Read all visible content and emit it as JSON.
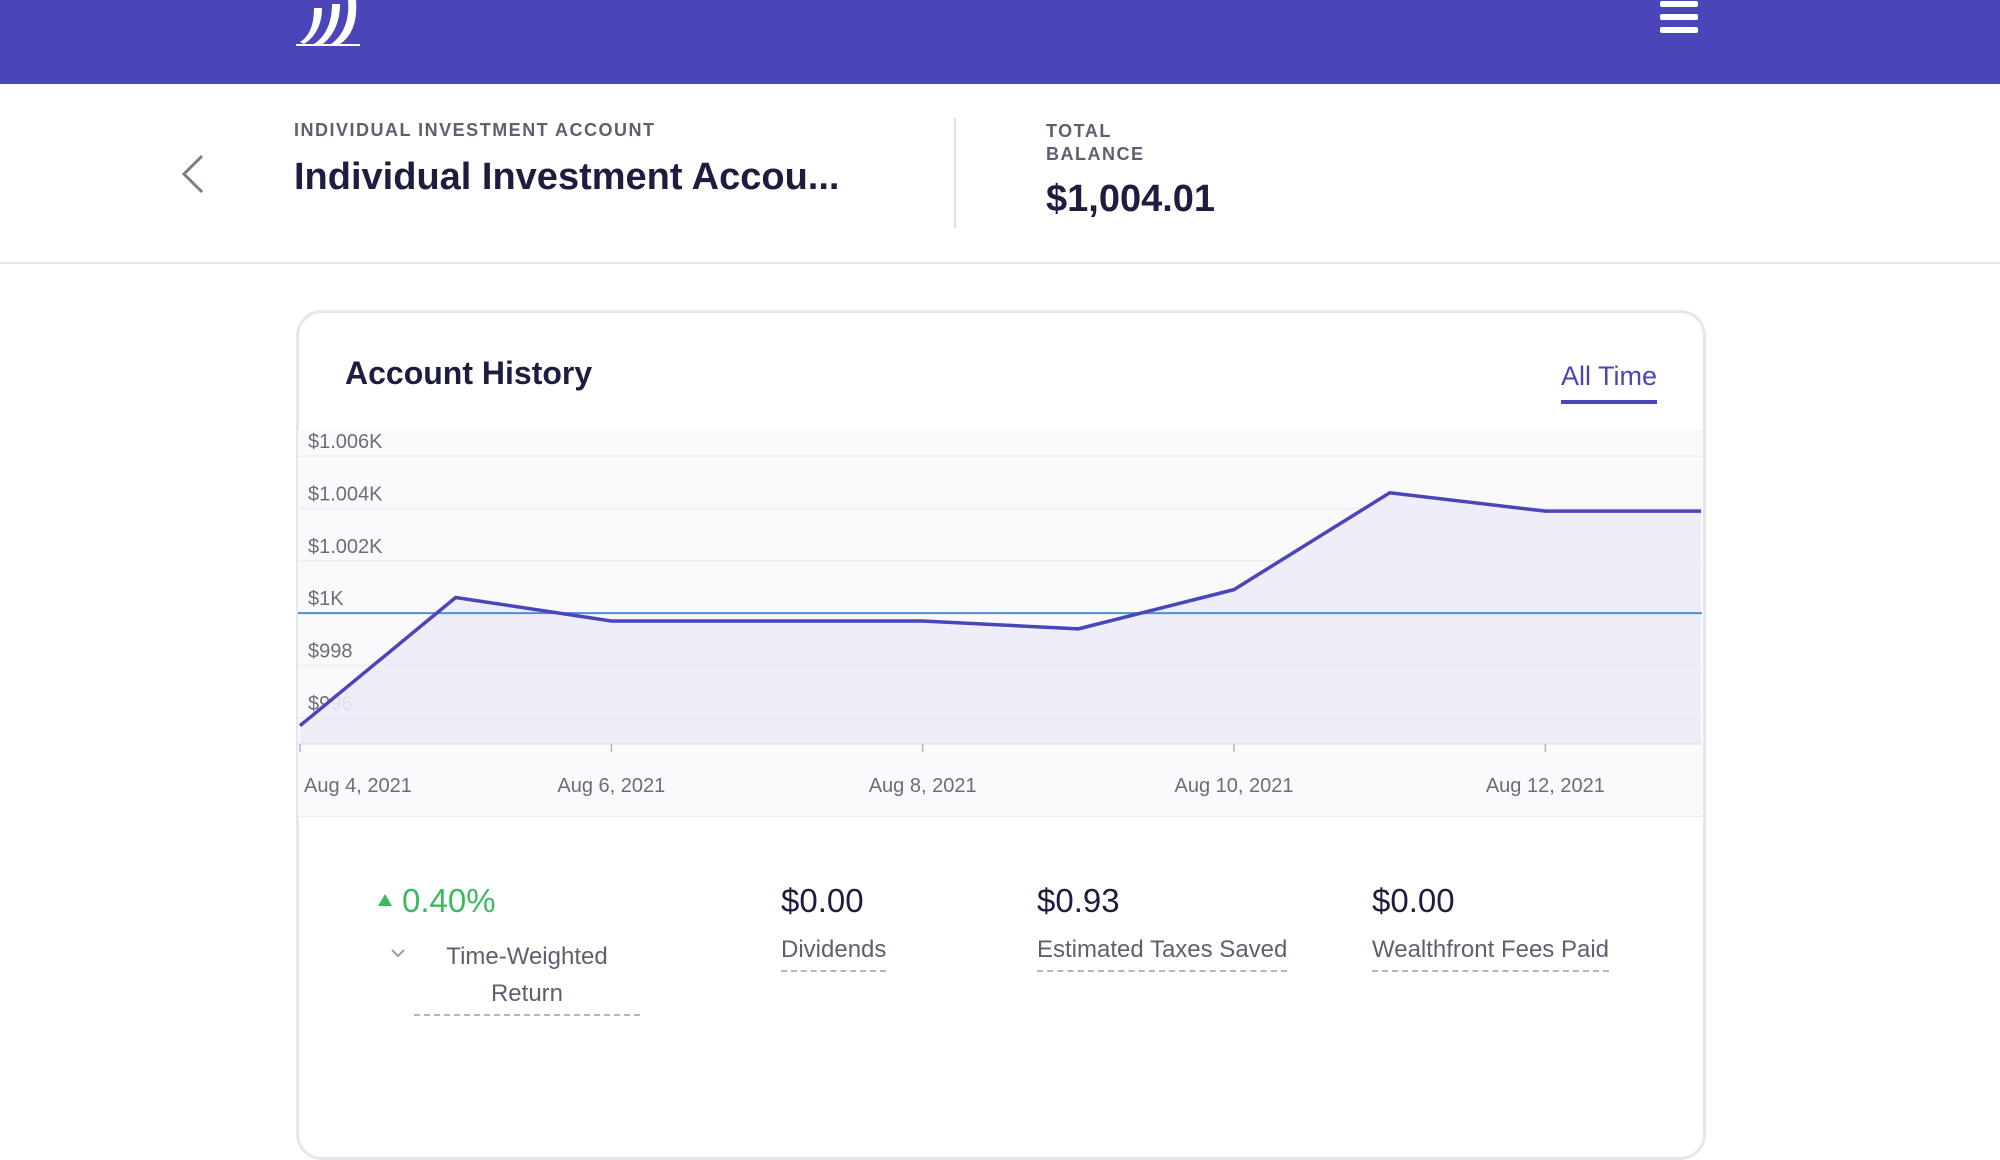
{
  "header": {
    "account_kicker": "INDIVIDUAL INVESTMENT ACCOUNT",
    "account_name": "Individual Investment Accou...",
    "total_label": "TOTAL BALANCE",
    "total_value": "$1,004.01"
  },
  "card": {
    "title": "Account History",
    "range_tab": "All Time"
  },
  "colors": {
    "brand": "#4a45b8",
    "positive": "#3dba5f",
    "baseline": "#4a90d9"
  },
  "chart_data": {
    "type": "area",
    "title": "Account History",
    "x": [
      "2021-08-04",
      "2021-08-05",
      "2021-08-06",
      "2021-08-07",
      "2021-08-08",
      "2021-08-09",
      "2021-08-10",
      "2021-08-11",
      "2021-08-12",
      "2021-08-13"
    ],
    "series": [
      {
        "values": [
          995.7,
          1000.6,
          999.7,
          999.7,
          999.7,
          999.4,
          1000.9,
          1004.6,
          1003.9,
          1003.9
        ]
      }
    ],
    "baseline": 1000,
    "yticks": [
      "$996",
      "$998",
      "$1K",
      "$1.002K",
      "$1.004K",
      "$1.006K"
    ],
    "ytick_values": [
      996,
      998,
      1000,
      1002,
      1004,
      1006
    ],
    "xticks": [
      "Aug 4, 2021",
      "Aug 6, 2021",
      "Aug 8, 2021",
      "Aug 10, 2021",
      "Aug 12, 2021"
    ],
    "xtick_dates": [
      "2021-08-04",
      "2021-08-06",
      "2021-08-08",
      "2021-08-10",
      "2021-08-12"
    ],
    "ylim": [
      995,
      1007
    ],
    "grid": true
  },
  "stats": {
    "twr_value": "0.40%",
    "twr_label": "Time-Weighted Return",
    "dividends_value": "$0.00",
    "dividends_label": "Dividends",
    "taxes_value": "$0.93",
    "taxes_label": "Estimated Taxes Saved",
    "fees_value": "$0.00",
    "fees_label": "Wealthfront Fees Paid"
  },
  "icons": {
    "logo": "wealthfront-logo",
    "menu": "hamburger-menu-icon",
    "back": "chevron-left-icon",
    "trend": "triangle-up-icon",
    "expand": "chevron-down-icon"
  }
}
